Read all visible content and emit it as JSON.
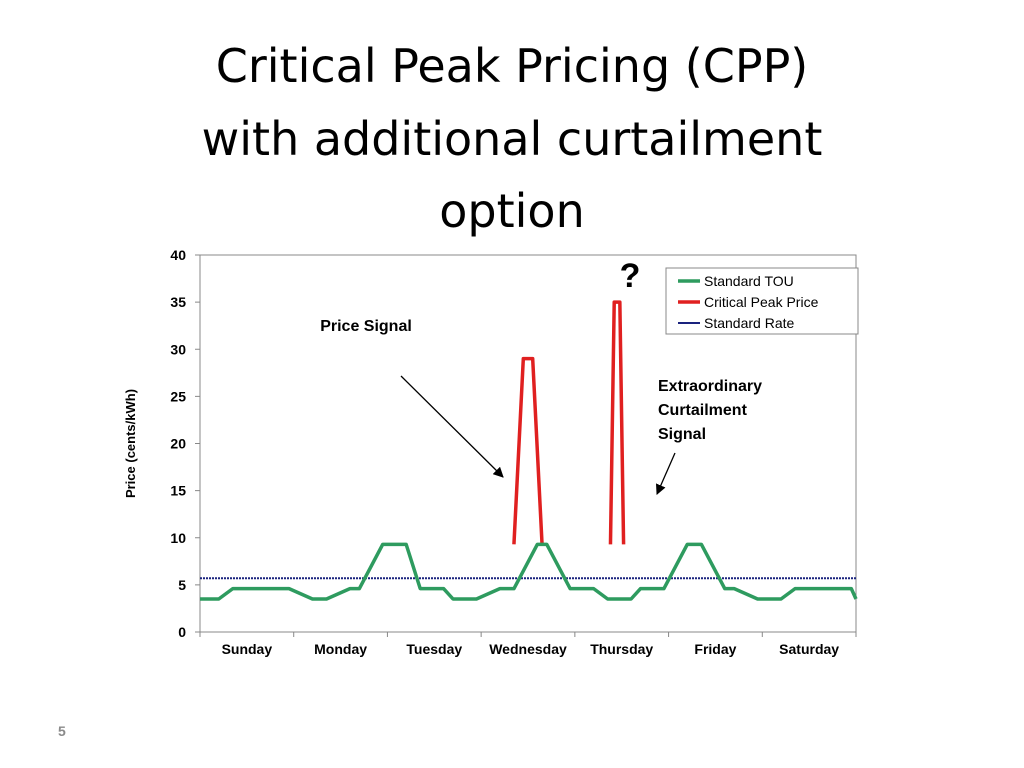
{
  "slide": {
    "title_lines": [
      "Critical Peak Pricing (CPP)",
      "with additional curtailment",
      "option"
    ],
    "page_number": "5"
  },
  "chart_data": {
    "type": "line",
    "ylabel": "Price (cents/kWh)",
    "ylim": [
      0,
      40
    ],
    "yticks": [
      0,
      5,
      10,
      15,
      20,
      25,
      30,
      35,
      40
    ],
    "x": [
      0,
      0.2,
      0.35,
      0.6,
      0.7,
      0.95,
      1.2,
      1.35,
      1.6,
      1.7,
      1.95,
      2.2,
      2.35,
      2.6,
      2.7,
      2.95,
      3.2,
      3.35,
      3.6,
      3.7,
      3.95,
      4.2,
      4.35,
      4.6,
      4.7,
      4.95,
      5.2,
      5.35,
      5.6,
      5.7,
      5.95,
      6.2,
      6.35,
      6.6,
      6.7,
      6.95,
      7.0
    ],
    "xlim": [
      0,
      7
    ],
    "categories": [
      "Sunday",
      "Monday",
      "Tuesday",
      "Wednesday",
      "Thursday",
      "Friday",
      "Saturday"
    ],
    "series": [
      {
        "name": "Standard TOU",
        "color": "#2e9b5f",
        "values": [
          3.5,
          3.5,
          4.6,
          4.6,
          4.6,
          4.6,
          3.5,
          3.5,
          4.6,
          4.6,
          9.3,
          9.3,
          4.6,
          4.6,
          3.5,
          3.5,
          4.6,
          4.6,
          9.3,
          9.3,
          4.6,
          4.6,
          3.5,
          3.5,
          4.6,
          4.6,
          9.3,
          9.3,
          4.6,
          4.6,
          3.5,
          3.5,
          4.6,
          4.6,
          4.6,
          4.6,
          3.5
        ]
      },
      {
        "name": "Critical Peak Price",
        "color": "#e02020",
        "segments": [
          {
            "x": [
              3.35,
              3.45,
              3.55,
              3.65
            ],
            "values": [
              9.3,
              29,
              29,
              9.3
            ]
          },
          {
            "x": [
              4.38,
              4.42,
              4.48,
              4.52
            ],
            "values": [
              9.3,
              35,
              35,
              9.3
            ]
          }
        ]
      },
      {
        "name": "Standard Rate",
        "color": "#1a237e",
        "values": [
          5.7,
          5.7
        ],
        "x": [
          0,
          7
        ]
      }
    ],
    "legend": {
      "placement": "top-right",
      "entries": [
        "Standard TOU",
        "Critical Peak Price",
        "Standard Rate"
      ]
    },
    "annotations": {
      "price_signal": "Price Signal",
      "curtailment_lines": [
        "Extraordinary",
        "Curtailment",
        "Signal"
      ],
      "question_mark": "?"
    },
    "grid": false
  }
}
